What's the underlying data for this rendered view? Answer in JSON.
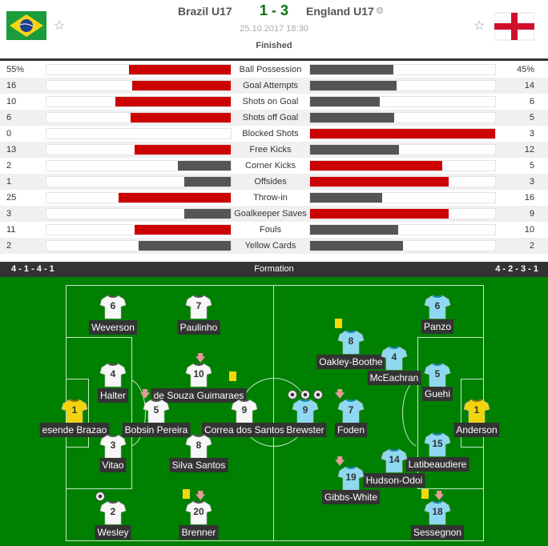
{
  "match": {
    "home": "Brazil U17",
    "away": "England U17",
    "score": "1 - 3",
    "datetime": "25.10.2017 18:30",
    "status": "Finished",
    "info_icon": "info-circle-icon"
  },
  "colors": {
    "leader": "#cc0000",
    "other": "#555555",
    "pitch": "#008000",
    "header_bar": "#333333",
    "score": "#06720a"
  },
  "stats": [
    {
      "label": "Ball Possession",
      "home": "55%",
      "away": "45%",
      "h": 55,
      "a": 45
    },
    {
      "label": "Goal Attempts",
      "home": "16",
      "away": "14",
      "h": 16,
      "a": 14
    },
    {
      "label": "Shots on Goal",
      "home": "10",
      "away": "6",
      "h": 10,
      "a": 6
    },
    {
      "label": "Shots off Goal",
      "home": "6",
      "away": "5",
      "h": 6,
      "a": 5
    },
    {
      "label": "Blocked Shots",
      "home": "0",
      "away": "3",
      "h": 0,
      "a": 3
    },
    {
      "label": "Free Kicks",
      "home": "13",
      "away": "12",
      "h": 13,
      "a": 12
    },
    {
      "label": "Corner Kicks",
      "home": "2",
      "away": "5",
      "h": 2,
      "a": 5
    },
    {
      "label": "Offsides",
      "home": "1",
      "away": "3",
      "h": 1,
      "a": 3
    },
    {
      "label": "Throw-in",
      "home": "25",
      "away": "16",
      "h": 25,
      "a": 16
    },
    {
      "label": "Goalkeeper Saves",
      "home": "3",
      "away": "9",
      "h": 3,
      "a": 9
    },
    {
      "label": "Fouls",
      "home": "11",
      "away": "10",
      "h": 11,
      "a": 10
    },
    {
      "label": "Yellow Cards",
      "home": "2",
      "away": "2",
      "h": 2,
      "a": 2
    }
  ],
  "formation": {
    "title": "Formation",
    "home": "4 - 1 - 4 - 1",
    "away": "4 - 2 - 3 - 1"
  },
  "home_players": [
    {
      "number": "6",
      "name": "Weverson"
    },
    {
      "number": "7",
      "name": "Paulinho"
    },
    {
      "number": "4",
      "name": "Halter"
    },
    {
      "number": "10",
      "name": "de Souza Guimaraes",
      "sub": true,
      "yellow": true
    },
    {
      "number": "1",
      "name": "esende Brazao",
      "gk": true
    },
    {
      "number": "5",
      "name": "Bobsin Pereira",
      "sub": true
    },
    {
      "number": "9",
      "name": "Correa dos Santos"
    },
    {
      "number": "3",
      "name": "Vitao"
    },
    {
      "number": "8",
      "name": "Silva Santos"
    },
    {
      "number": "2",
      "name": "Wesley",
      "goals": 1
    },
    {
      "number": "20",
      "name": "Brenner",
      "yellow": true,
      "sub": true
    }
  ],
  "away_players": [
    {
      "number": "6",
      "name": "Panzo"
    },
    {
      "number": "8",
      "name": "Oakley-Boothe",
      "yellow": true
    },
    {
      "number": "4",
      "name": "McEachran"
    },
    {
      "number": "5",
      "name": "Guehi"
    },
    {
      "number": "9",
      "name": "Brewster",
      "goals": 3
    },
    {
      "number": "7",
      "name": "Foden",
      "sub": true
    },
    {
      "number": "1",
      "name": "Anderson",
      "gk": true
    },
    {
      "number": "15",
      "name": "Latibeaudiere"
    },
    {
      "number": "14",
      "name": "Hudson-Odoi"
    },
    {
      "number": "19",
      "name": "Gibbs-White",
      "sub": true
    },
    {
      "number": "18",
      "name": "Sessegnon",
      "yellow": true,
      "sub": true
    }
  ]
}
